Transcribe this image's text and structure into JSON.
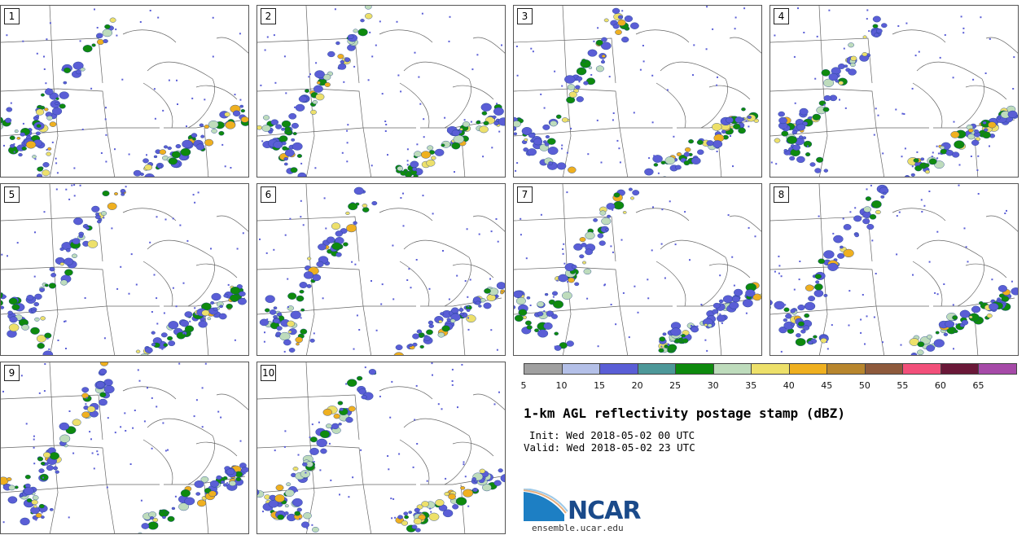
{
  "panels": [
    {
      "label": "1"
    },
    {
      "label": "2"
    },
    {
      "label": "3"
    },
    {
      "label": "4"
    },
    {
      "label": "5"
    },
    {
      "label": "6"
    },
    {
      "label": "7"
    },
    {
      "label": "8"
    },
    {
      "label": "9"
    },
    {
      "label": "10"
    }
  ],
  "colorbar": {
    "ticks": [
      "5",
      "10",
      "15",
      "20",
      "25",
      "30",
      "35",
      "40",
      "45",
      "50",
      "55",
      "60",
      "65"
    ],
    "colors": [
      "#a0a0a0",
      "#b4c0e8",
      "#5a5ed6",
      "#4d9899",
      "#0e8a0e",
      "#bedcbc",
      "#ede06a",
      "#efb020",
      "#b8862e",
      "#8e5a3c",
      "#f2507a",
      "#6a1838",
      "#a64aa8"
    ]
  },
  "info": {
    "title": "1-km AGL reflectivity postage stamp (dBZ)",
    "init": "Init: Wed 2018-05-02 00 UTC",
    "valid": "Valid: Wed 2018-05-02 23 UTC",
    "logo": "NCAR",
    "url": "ensemble.ucar.edu"
  }
}
